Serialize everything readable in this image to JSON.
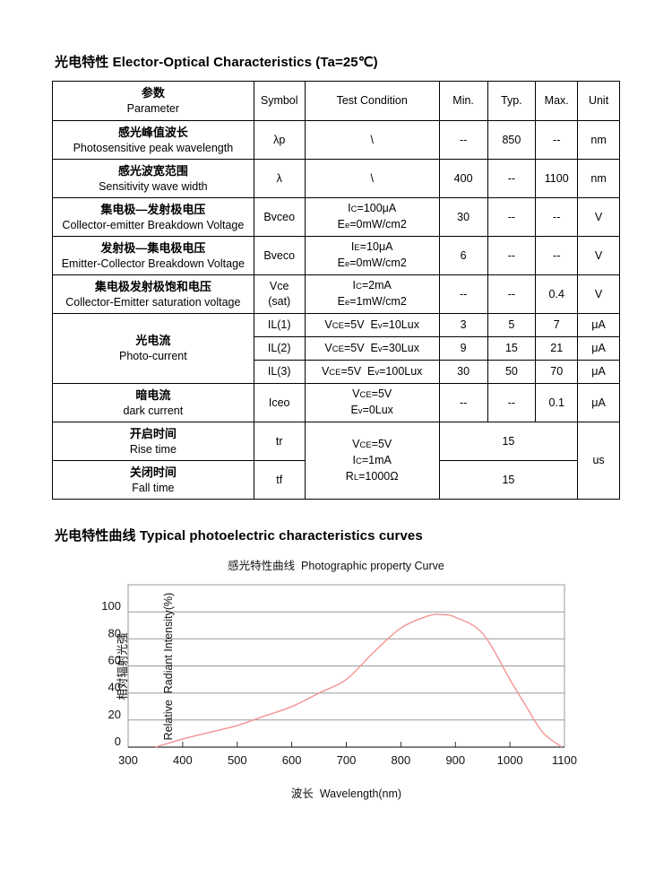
{
  "page": {
    "section1_title": "光电特性 Elector-Optical Characteristics (Ta=25℃)",
    "section2_title": "光电特性曲线 Typical photoelectric characteristics curves"
  },
  "table": {
    "headers": [
      {
        "lines": [
          "参数",
          "Parameter"
        ]
      },
      {
        "lines": [
          "Symbol"
        ]
      },
      {
        "lines": [
          "Test Condition"
        ]
      },
      {
        "lines": [
          "Min."
        ]
      },
      {
        "lines": [
          "Typ."
        ]
      },
      {
        "lines": [
          "Max."
        ]
      },
      {
        "lines": [
          "Unit"
        ]
      }
    ],
    "rows": [
      {
        "cells": [
          {
            "lines": [
              "感光峰值波长",
              "Photosensitive peak wavelength"
            ]
          },
          {
            "lines": [
              "λp"
            ]
          },
          {
            "lines": [
              "\\"
            ]
          },
          {
            "lines": [
              "--"
            ]
          },
          {
            "lines": [
              "850"
            ]
          },
          {
            "lines": [
              "--"
            ]
          },
          {
            "lines": [
              "nm"
            ]
          }
        ]
      },
      {
        "cells": [
          {
            "lines": [
              "感光波宽范围",
              "Sensitivity wave width"
            ]
          },
          {
            "lines": [
              "λ"
            ]
          },
          {
            "lines": [
              "\\"
            ]
          },
          {
            "lines": [
              "400"
            ]
          },
          {
            "lines": [
              "--"
            ]
          },
          {
            "lines": [
              "1100"
            ]
          },
          {
            "lines": [
              "nm"
            ]
          }
        ]
      },
      {
        "cells": [
          {
            "lines": [
              "集电极—发射极电压",
              "Collector-emitter Breakdown Voltage"
            ]
          },
          {
            "lines": [
              "Bvceo"
            ]
          },
          {
            "lines": [
              "IC=100μA",
              "Ee=0mW/cm2"
            ]
          },
          {
            "lines": [
              "30"
            ]
          },
          {
            "lines": [
              "--"
            ]
          },
          {
            "lines": [
              "--"
            ]
          },
          {
            "lines": [
              "V"
            ]
          }
        ]
      },
      {
        "cells": [
          {
            "lines": [
              "发射极—集电极电压",
              "Emitter-Collector Breakdown Voltage"
            ]
          },
          {
            "lines": [
              "Bveco"
            ]
          },
          {
            "lines": [
              "IE=10μA",
              "Ee=0mW/cm2"
            ]
          },
          {
            "lines": [
              "6"
            ]
          },
          {
            "lines": [
              "--"
            ]
          },
          {
            "lines": [
              "--"
            ]
          },
          {
            "lines": [
              "V"
            ]
          }
        ]
      },
      {
        "cells": [
          {
            "lines": [
              "集电极发射极饱和电压",
              "Collector-Emitter saturation voltage"
            ]
          },
          {
            "lines": [
              "Vce",
              "(sat)"
            ]
          },
          {
            "lines": [
              "IC=2mA",
              "Ee=1mW/cm2"
            ]
          },
          {
            "lines": [
              "--"
            ]
          },
          {
            "lines": [
              "--"
            ]
          },
          {
            "lines": [
              "0.4"
            ]
          },
          {
            "lines": [
              "V"
            ]
          }
        ]
      },
      {
        "compact": true,
        "cells": [
          {
            "lines": [
              "光电流",
              "Photo-current"
            ],
            "rowspan": 3
          },
          {
            "lines": [
              "IL(1)"
            ]
          },
          {
            "lines": [
              "VCE=5V  Ev=10Lux"
            ]
          },
          {
            "lines": [
              "3"
            ]
          },
          {
            "lines": [
              "5"
            ]
          },
          {
            "lines": [
              "7"
            ]
          },
          {
            "lines": [
              "μA"
            ]
          }
        ]
      },
      {
        "compact": true,
        "cells": [
          {
            "lines": [
              "IL(2)"
            ]
          },
          {
            "lines": [
              "VCE=5V  Ev=30Lux"
            ]
          },
          {
            "lines": [
              "9"
            ]
          },
          {
            "lines": [
              "15"
            ]
          },
          {
            "lines": [
              "21"
            ]
          },
          {
            "lines": [
              "μA"
            ]
          }
        ]
      },
      {
        "compact": true,
        "cells": [
          {
            "lines": [
              "IL(3)"
            ]
          },
          {
            "lines": [
              "VCE=5V  Ev=100Lux"
            ]
          },
          {
            "lines": [
              "30"
            ]
          },
          {
            "lines": [
              "50"
            ]
          },
          {
            "lines": [
              "70"
            ]
          },
          {
            "lines": [
              "μA"
            ]
          }
        ]
      },
      {
        "cells": [
          {
            "lines": [
              "暗电流",
              "dark current"
            ]
          },
          {
            "lines": [
              "Iceo"
            ]
          },
          {
            "lines": [
              "VCE=5V",
              "Ev=0Lux"
            ]
          },
          {
            "lines": [
              "--"
            ]
          },
          {
            "lines": [
              "--"
            ]
          },
          {
            "lines": [
              "0.1"
            ]
          },
          {
            "lines": [
              "μA"
            ]
          }
        ]
      },
      {
        "cells": [
          {
            "lines": [
              "开启时间",
              "Rise time"
            ]
          },
          {
            "lines": [
              "tr"
            ]
          },
          {
            "lines": [
              "VCE=5V",
              "IC=1mA",
              "RL=1000Ω"
            ],
            "rowspan": 2
          },
          {
            "lines": [
              "15"
            ],
            "colspan": 3
          },
          {
            "lines": [
              "us"
            ],
            "rowspan": 2
          }
        ]
      },
      {
        "cells": [
          {
            "lines": [
              "关闭时间",
              "Fall time"
            ]
          },
          {
            "lines": [
              "tf"
            ]
          },
          {
            "lines": [
              "15"
            ],
            "colspan": 3
          }
        ]
      }
    ]
  },
  "chart_data": {
    "type": "line",
    "title": "感光特性曲线  Photographic property Curve",
    "xlabel": "波长  Wavelength(nm)",
    "ylabel": "相对辐射光强 Relative Radiant Intensity(%)",
    "ylabel_cn": "相对辐射光强",
    "ylabel_en": "Relative  Radiant Intensity(%)",
    "xlim": [
      300,
      1100
    ],
    "ylim": [
      0,
      120
    ],
    "xticks": [
      300,
      400,
      500,
      600,
      700,
      800,
      900,
      1000,
      1100
    ],
    "yticks": [
      0,
      20,
      40,
      60,
      80,
      100
    ],
    "grid": "horizontal-only",
    "legend": "none",
    "line_color": "#f29494",
    "series": [
      {
        "name": "Relative Radiant Intensity",
        "x": [
          350,
          400,
          450,
          500,
          550,
          600,
          650,
          700,
          750,
          800,
          850,
          875,
          900,
          950,
          1000,
          1030,
          1060,
          1095
        ],
        "y": [
          0,
          6,
          11,
          16,
          23,
          30,
          40,
          50,
          70,
          88,
          97,
          98,
          96,
          84,
          50,
          30,
          11,
          0
        ]
      }
    ]
  }
}
